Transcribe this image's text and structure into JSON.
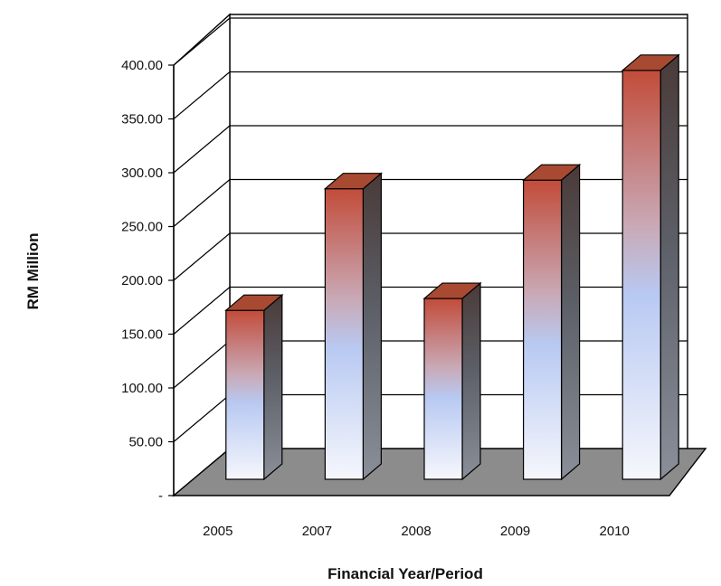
{
  "chart_data": {
    "type": "bar",
    "style": "3d-column",
    "categories": [
      "2005",
      "2007",
      "2008",
      "2009",
      "2010"
    ],
    "values": [
      157,
      270,
      168,
      278,
      380
    ],
    "ylim": [
      0,
      400
    ],
    "yticks": [
      0,
      50,
      100,
      150,
      200,
      250,
      300,
      350,
      400
    ],
    "ytick_labels": [
      "-",
      "50.00",
      "100.00",
      "150.00",
      "200.00",
      "250.00",
      "300.00",
      "350.00",
      "400.00"
    ],
    "xlabel": "Financial Year/Period",
    "ylabel": "RM Million",
    "grid": true,
    "legend": "none",
    "colors": {
      "bar_top": "#c0503e",
      "bar_mid": "#b9cbf2",
      "bar_bottom": "#f4f6fc",
      "bar_side": "#6e6e6e",
      "floor": "#8c8c8c",
      "grid": "#000000"
    }
  }
}
